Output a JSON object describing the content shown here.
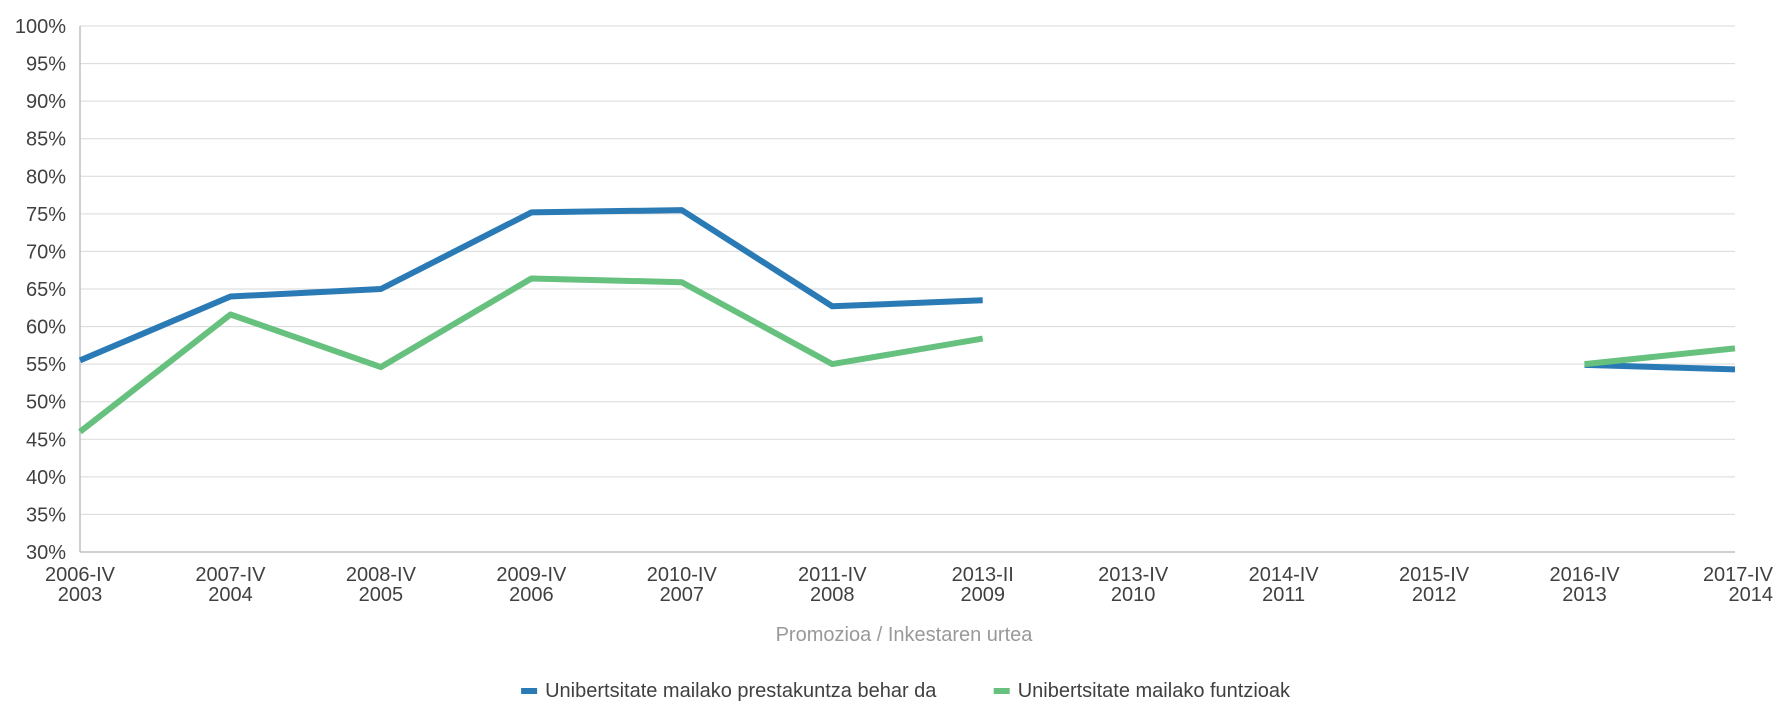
{
  "chart_data": {
    "type": "line",
    "title": "",
    "xlabel": "Promozioa / Inkestaren urtea",
    "ylabel": "",
    "ylim": [
      30,
      100
    ],
    "y_ticks": [
      30,
      35,
      40,
      45,
      50,
      55,
      60,
      65,
      70,
      75,
      80,
      85,
      90,
      95,
      100
    ],
    "y_tick_suffix": "%",
    "grid": true,
    "legend_position": "bottom",
    "categories": [
      [
        "2006-IV",
        "2003"
      ],
      [
        "2007-IV",
        "2004"
      ],
      [
        "2008-IV",
        "2005"
      ],
      [
        "2009-IV",
        "2006"
      ],
      [
        "2010-IV",
        "2007"
      ],
      [
        "2011-IV",
        "2008"
      ],
      [
        "2013-II",
        "2009"
      ],
      [
        "2013-IV",
        "2010"
      ],
      [
        "2014-IV",
        "2011"
      ],
      [
        "2015-IV",
        "2012"
      ],
      [
        "2016-IV",
        "2013"
      ],
      [
        "2017-IV",
        "2014"
      ]
    ],
    "series": [
      {
        "name": "Unibertsitate mailako prestakuntza behar da",
        "color": "#2a7ab5",
        "values": [
          55.5,
          64,
          65,
          75.2,
          75.5,
          62.7,
          63.5,
          null,
          null,
          null,
          54.9,
          54.3
        ]
      },
      {
        "name": "Unibertsitate mailako funtzioak",
        "color": "#66c17e",
        "values": [
          46,
          61.6,
          54.6,
          66.4,
          65.9,
          55,
          58.4,
          null,
          null,
          null,
          55,
          57.1
        ]
      }
    ]
  }
}
